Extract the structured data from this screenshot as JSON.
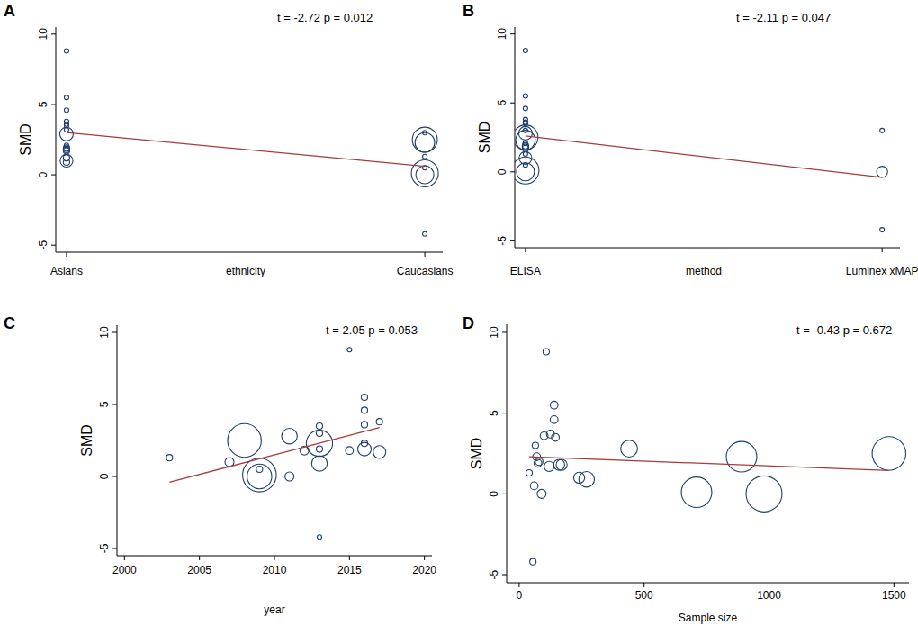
{
  "chart_data": [
    {
      "type": "scatter",
      "title": "A",
      "annotation": "t = -2.72 p = 0.012",
      "x_label": "ethnicity",
      "y_label": "SMD",
      "xlim": [
        -0.03,
        1.05
      ],
      "xticks": [
        {
          "value": 0,
          "label": "Asians"
        },
        {
          "value": 1,
          "label": "Caucasians"
        }
      ],
      "ylim": [
        -5.5,
        10.5
      ],
      "yticks": [
        -5,
        0,
        5,
        10
      ],
      "series": [
        {
          "type": "scatter",
          "marker": "circle",
          "color": "#1f3d6b",
          "x": [
            0,
            0,
            0,
            0,
            0,
            0,
            0,
            0,
            0,
            0,
            0,
            0,
            0,
            0,
            0,
            1,
            1,
            1,
            1,
            1,
            1,
            1,
            1
          ],
          "values": [
            8.8,
            5.5,
            4.6,
            3.8,
            3.6,
            3.5,
            3.2,
            2.9,
            2.1,
            1.9,
            1.8,
            1.7,
            1.2,
            1.0,
            0.9,
            3.0,
            2.5,
            2.3,
            1.3,
            0.5,
            0.1,
            0.0,
            -4.2
          ],
          "size": [
            1,
            1,
            1,
            1,
            1,
            1,
            1,
            9,
            1,
            2,
            2,
            2,
            2,
            8,
            2,
            1,
            31,
            19,
            1,
            1,
            36,
            16,
            1
          ]
        },
        {
          "type": "line",
          "color": "#a83a3a",
          "x": [
            0,
            1
          ],
          "values": [
            3.0,
            0.6
          ]
        }
      ]
    },
    {
      "type": "scatter",
      "title": "B",
      "annotation": "t = -2.11 p = 0.047",
      "x_label": "method",
      "y_label": "SMD",
      "xlim": [
        -0.03,
        1.05
      ],
      "xticks": [
        {
          "value": 0,
          "label": "ELISA"
        },
        {
          "value": 1,
          "label": "Luminex xMAP"
        }
      ],
      "ylim": [
        -5.5,
        10.5
      ],
      "yticks": [
        -5,
        0,
        5,
        10
      ],
      "series": [
        {
          "type": "scatter",
          "marker": "circle",
          "color": "#1f3d6b",
          "x": [
            0,
            0,
            0,
            0,
            0,
            0,
            0,
            0,
            0,
            0,
            0,
            0,
            0,
            0,
            0,
            0,
            0,
            0,
            0,
            1,
            1,
            1
          ],
          "values": [
            8.8,
            5.5,
            4.6,
            3.8,
            3.6,
            3.5,
            3.0,
            2.8,
            2.5,
            2.3,
            2.1,
            1.9,
            1.8,
            1.7,
            1.3,
            1.0,
            0.5,
            0.1,
            0.0,
            3.0,
            0.0,
            -4.2
          ],
          "size": [
            1,
            1,
            1,
            1,
            1,
            1,
            1,
            9,
            31,
            19,
            1,
            2,
            2,
            2,
            1,
            8,
            1,
            36,
            16,
            1,
            6,
            1
          ]
        },
        {
          "type": "line",
          "color": "#a83a3a",
          "x": [
            0,
            1
          ],
          "values": [
            2.6,
            -0.4
          ]
        }
      ]
    },
    {
      "type": "scatter",
      "title": "C",
      "annotation": "t = 2.05 p = 0.053",
      "x_label": "year",
      "y_label": "SMD",
      "xlim": [
        1999.5,
        2020.5
      ],
      "xticks": [
        2000,
        2005,
        2010,
        2015,
        2020
      ],
      "ylim": [
        -5.5,
        10.5
      ],
      "yticks": [
        -5,
        0,
        5,
        10
      ],
      "series": [
        {
          "type": "scatter",
          "marker": "circle",
          "color": "#1f3d6b",
          "x": [
            2003,
            2007,
            2008,
            2009,
            2009,
            2009,
            2011,
            2011,
            2012,
            2013,
            2013,
            2013,
            2013,
            2013,
            2013,
            2015,
            2015,
            2016,
            2016,
            2016,
            2016,
            2016,
            2017,
            2017
          ],
          "values": [
            1.3,
            1.0,
            2.5,
            0.5,
            0.1,
            0.0,
            2.8,
            0.0,
            1.8,
            3.5,
            3.0,
            2.3,
            1.9,
            0.9,
            -4.2,
            8.8,
            1.8,
            5.5,
            4.6,
            3.6,
            2.3,
            1.9,
            3.8,
            1.7
          ],
          "size": [
            2,
            4,
            56,
            2,
            56,
            30,
            12,
            4,
            4,
            2,
            2,
            34,
            2,
            12,
            1,
            1,
            3,
            2,
            2,
            2,
            2,
            9,
            2,
            8
          ]
        },
        {
          "type": "line",
          "color": "#a83a3a",
          "x": [
            2003,
            2017
          ],
          "values": [
            -0.4,
            3.4
          ]
        }
      ]
    },
    {
      "type": "scatter",
      "title": "D",
      "annotation": "t = -0.43  p = 0.672",
      "x_label": "Sample size",
      "y_label": "SMD",
      "xlim": [
        -50,
        1560
      ],
      "xticks": [
        0,
        500,
        1000,
        1500
      ],
      "ylim": [
        -5.5,
        10.5
      ],
      "yticks": [
        -5,
        0,
        5,
        10
      ],
      "series": [
        {
          "type": "scatter",
          "marker": "circle",
          "color": "#1f3d6b",
          "x": [
            40,
            55,
            60,
            65,
            70,
            75,
            80,
            90,
            100,
            108,
            120,
            125,
            140,
            140,
            145,
            160,
            170,
            240,
            270,
            440,
            710,
            890,
            980,
            1480
          ],
          "values": [
            1.3,
            -4.2,
            0.5,
            3.0,
            2.3,
            1.9,
            2.0,
            0.0,
            3.6,
            8.8,
            1.7,
            3.7,
            4.6,
            5.5,
            3.5,
            1.8,
            1.8,
            1.0,
            0.9,
            2.8,
            0.1,
            2.3,
            0.0,
            2.5
          ],
          "size": [
            2,
            2,
            3,
            2,
            3,
            3,
            3,
            4,
            3,
            2,
            5,
            3,
            3,
            3,
            3,
            6,
            6,
            6,
            12,
            14,
            46,
            46,
            64,
            56
          ]
        },
        {
          "type": "line",
          "color": "#a83a3a",
          "x": [
            40,
            1480
          ],
          "values": [
            2.3,
            1.45
          ]
        }
      ]
    }
  ]
}
